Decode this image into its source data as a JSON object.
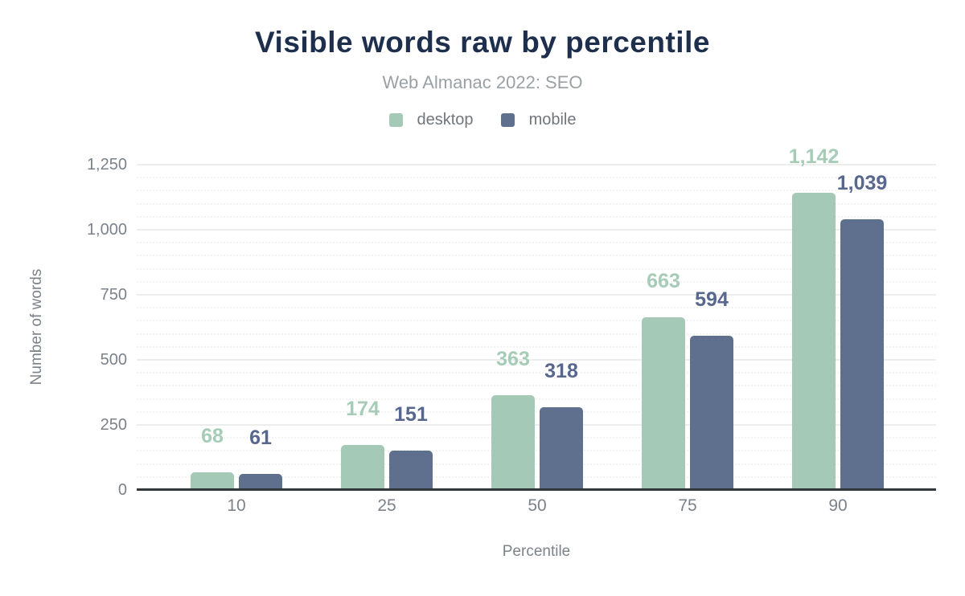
{
  "header": {
    "title": "Visible words raw by percentile",
    "subtitle": "Web Almanac 2022: SEO"
  },
  "chart_data": {
    "type": "bar",
    "title": "Visible words raw by percentile",
    "subtitle": "Web Almanac 2022: SEO",
    "xlabel": "Percentile",
    "ylabel": "Number of words",
    "categories": [
      "10",
      "25",
      "50",
      "75",
      "90"
    ],
    "series": [
      {
        "name": "desktop",
        "color": "#a5c9b7",
        "label_color": "#a6ccb8",
        "values": [
          68,
          174,
          363,
          663,
          1142
        ],
        "value_labels": [
          "68",
          "174",
          "363",
          "663",
          "1,142"
        ]
      },
      {
        "name": "mobile",
        "color": "#5f6f8e",
        "label_color": "#58678e",
        "values": [
          61,
          151,
          318,
          594,
          1039
        ],
        "value_labels": [
          "61",
          "151",
          "318",
          "594",
          "1,039"
        ]
      }
    ],
    "ylim": [
      0,
      1250
    ],
    "yticks": [
      0,
      250,
      500,
      750,
      1000,
      1250
    ],
    "ytick_labels": [
      "0",
      "250",
      "500",
      "750",
      "1,000",
      "1,250"
    ],
    "grid": {
      "major_step": 250,
      "minor_step": 50,
      "minor_style": "dotted"
    },
    "legend_position": "top"
  },
  "colors": {
    "title": "#1e2f4e",
    "subtitle": "#9aa1a6",
    "legend_text": "#70767c",
    "axis_text": "#7b8289",
    "grid_major": "#ededed",
    "grid_minor": "#f3f3f3",
    "baseline": "#33383d",
    "background": "#ffffff"
  }
}
